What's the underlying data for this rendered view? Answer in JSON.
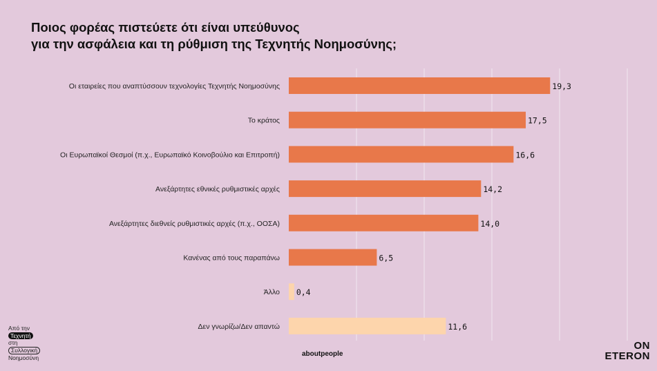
{
  "title": {
    "line1": "Ποιος φορέας πιστεύετε ότι είναι υπεύθυνος",
    "line2": "για την ασφάλεια και τη ρύθμιση της Τεχνητής Νοημοσύνης;"
  },
  "colors": {
    "background": "#e3c9dc",
    "bar_primary": "#e8784a",
    "bar_secondary": "#fdd5ac",
    "gridline": "#f2e6ef"
  },
  "chart_data": {
    "type": "bar",
    "orientation": "horizontal",
    "categories": [
      "Οι εταιρείες που αναπτύσσουν τεχνολογίες Τεχνητής Νοημοσύνης",
      "Το κράτος",
      "Οι Ευρωπαϊκοί Θεσμοί (π.χ., Ευρωπαϊκό Κοινοβούλιο και Επιτροπή)",
      "Ανεξάρτητες εθνικές ρυθμιστικές αρχές",
      "Ανεξάρτητες διεθνείς ρυθμιστικές αρχές (π.χ., ΟΟΣΑ)",
      "Κανένας από τους παραπάνω",
      "Άλλο",
      "Δεν γνωρίζω/Δεν απαντώ"
    ],
    "values": [
      19.3,
      17.5,
      16.6,
      14.2,
      14.0,
      6.5,
      0.4,
      11.6
    ],
    "value_labels": [
      "19,3",
      "17,5",
      "16,6",
      "14,2",
      "14,0",
      "6,5",
      "0,4",
      "11,6"
    ],
    "bar_colors": [
      "#e8784a",
      "#e8784a",
      "#e8784a",
      "#e8784a",
      "#e8784a",
      "#e8784a",
      "#fdd5ac",
      "#fdd5ac"
    ],
    "xlim": [
      0,
      25
    ],
    "gridlines": [
      0,
      5,
      10,
      15,
      20,
      25
    ],
    "grid": true,
    "legend": "none"
  },
  "branding": {
    "left_line1": "Από την",
    "left_line2": "Τεχνητή",
    "left_line3": "στη",
    "left_line4": "Συλλογική",
    "left_line5": "Νοημοσύνη",
    "center": "aboutpeople",
    "right_line1": "ON",
    "right_line2": "ETERON"
  }
}
